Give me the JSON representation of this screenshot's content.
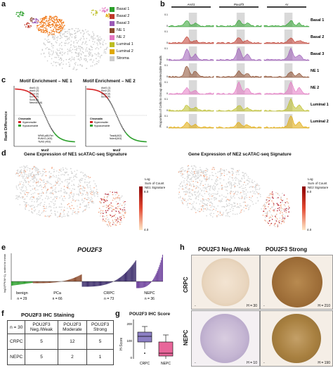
{
  "panel_labels": {
    "a": "a",
    "b": "b",
    "c": "c",
    "d": "d",
    "e": "e",
    "f": "f",
    "g": "g",
    "h": "h"
  },
  "colors": {
    "Basal 1": "#2ca02c",
    "Basal 2": "#c0392b",
    "Basal 3": "#9b59b6",
    "NE 1": "#8b4a2b",
    "NE 2": "#e377c2",
    "Luminal 1": "#bcbd22",
    "Luminal 2": "#e0a800",
    "Stroma": "#cccccc",
    "orange": "#f07b1c",
    "red": "#b2182b"
  },
  "panel_a": {
    "legend": [
      "Basal 1",
      "Basal 2",
      "Basal 3",
      "NE 1",
      "NE 2",
      "Luminal 1",
      "Luminal 2",
      "Stroma"
    ]
  },
  "panel_b": {
    "genes": [
      "Ascl1",
      "Pou2f3",
      "Ar"
    ],
    "ylabel": "Proportion of Cells in Group with Detectable Reads",
    "tick_top": "0.1",
    "tick_bottom": "0",
    "rows": [
      "Basal 1",
      "Basal 2",
      "Basal 3",
      "NE 1",
      "NE 2",
      "Luminal 1",
      "Luminal 2"
    ]
  },
  "panel_c": {
    "title1": "Motif Enrichment – NE 1",
    "title2": "Motif Enrichment – NE 2",
    "ylabel": "Rank Difference",
    "xlabel": "Motif",
    "chrom_label": "Chromatin",
    "hyper": "Hypercessible",
    "hypo": "Hypoaccessible",
    "ne1_top": [
      "Ascl1 (1)",
      "Ascl1 (2)",
      "Sox2 (3)",
      "Sox4 (4)",
      "Sox6 (5)",
      "Neurod1 (6)"
    ],
    "ne1_bottom": [
      "NFkB-p65-Rel",
      "RUNX1 (402)",
      "TEAD (403)"
    ],
    "ne2_top": [
      "Ascl1 (1)",
      "Sox2 (2)",
      "Sox4 (3)",
      "Sox6 (4)"
    ],
    "ne2_bottom": [
      "Tead4(402)",
      "Nuhr4(403)"
    ]
  },
  "panel_d": {
    "title1": "Gene Expression of NE1 scATAC-seq Signature",
    "title2": "Gene Expression of NE2 scATAC-seq Signature",
    "legend1": [
      "Log",
      "Sum of Count",
      "NE1 Signature"
    ],
    "legend2": [
      "Log",
      "Sum of Count",
      "NE2 Signature"
    ],
    "scale_max": "8.0",
    "scale_min": "4.0"
  },
  "chart_data": {
    "type": "bar",
    "title": "POU2F3",
    "ylabel": "log2(FPKM+1), scaled to mean",
    "categories": [
      "benign",
      "PCa",
      "CRPC",
      "NEPC"
    ],
    "n_labels": [
      "n = 29",
      "n = 66",
      "n = 73",
      "n = 36"
    ],
    "series_colors": [
      "#2ca02c",
      "#8b4a2b",
      "#3a2a6a",
      "#6a3d9a"
    ]
  },
  "panel_f": {
    "title": "POU2F3 IHC Staining",
    "header": [
      "n = 30",
      "POU2F3 Neg./Weak",
      "POU2F3 Moderate",
      "POU2F3 Strong"
    ],
    "rows": [
      {
        "label": "CRPC",
        "v": [
          "5",
          "12",
          "5"
        ]
      },
      {
        "label": "NEPC",
        "v": [
          "5",
          "2",
          "1"
        ]
      }
    ]
  },
  "panel_g": {
    "title": "POU2F3 IHC Score",
    "ylabel": "H-Score",
    "categories": [
      "CRPC",
      "NEPC"
    ],
    "yticks": [
      "200",
      "100",
      "0"
    ]
  },
  "panel_h": {
    "col1": "POU2F3 Neg./Weak",
    "col2": "POU2F3 Strong",
    "row1": "CRPC",
    "row2": "NEPC",
    "h_vals": [
      "H = 30",
      "H = 210",
      "H = 10",
      "H = 190"
    ]
  }
}
